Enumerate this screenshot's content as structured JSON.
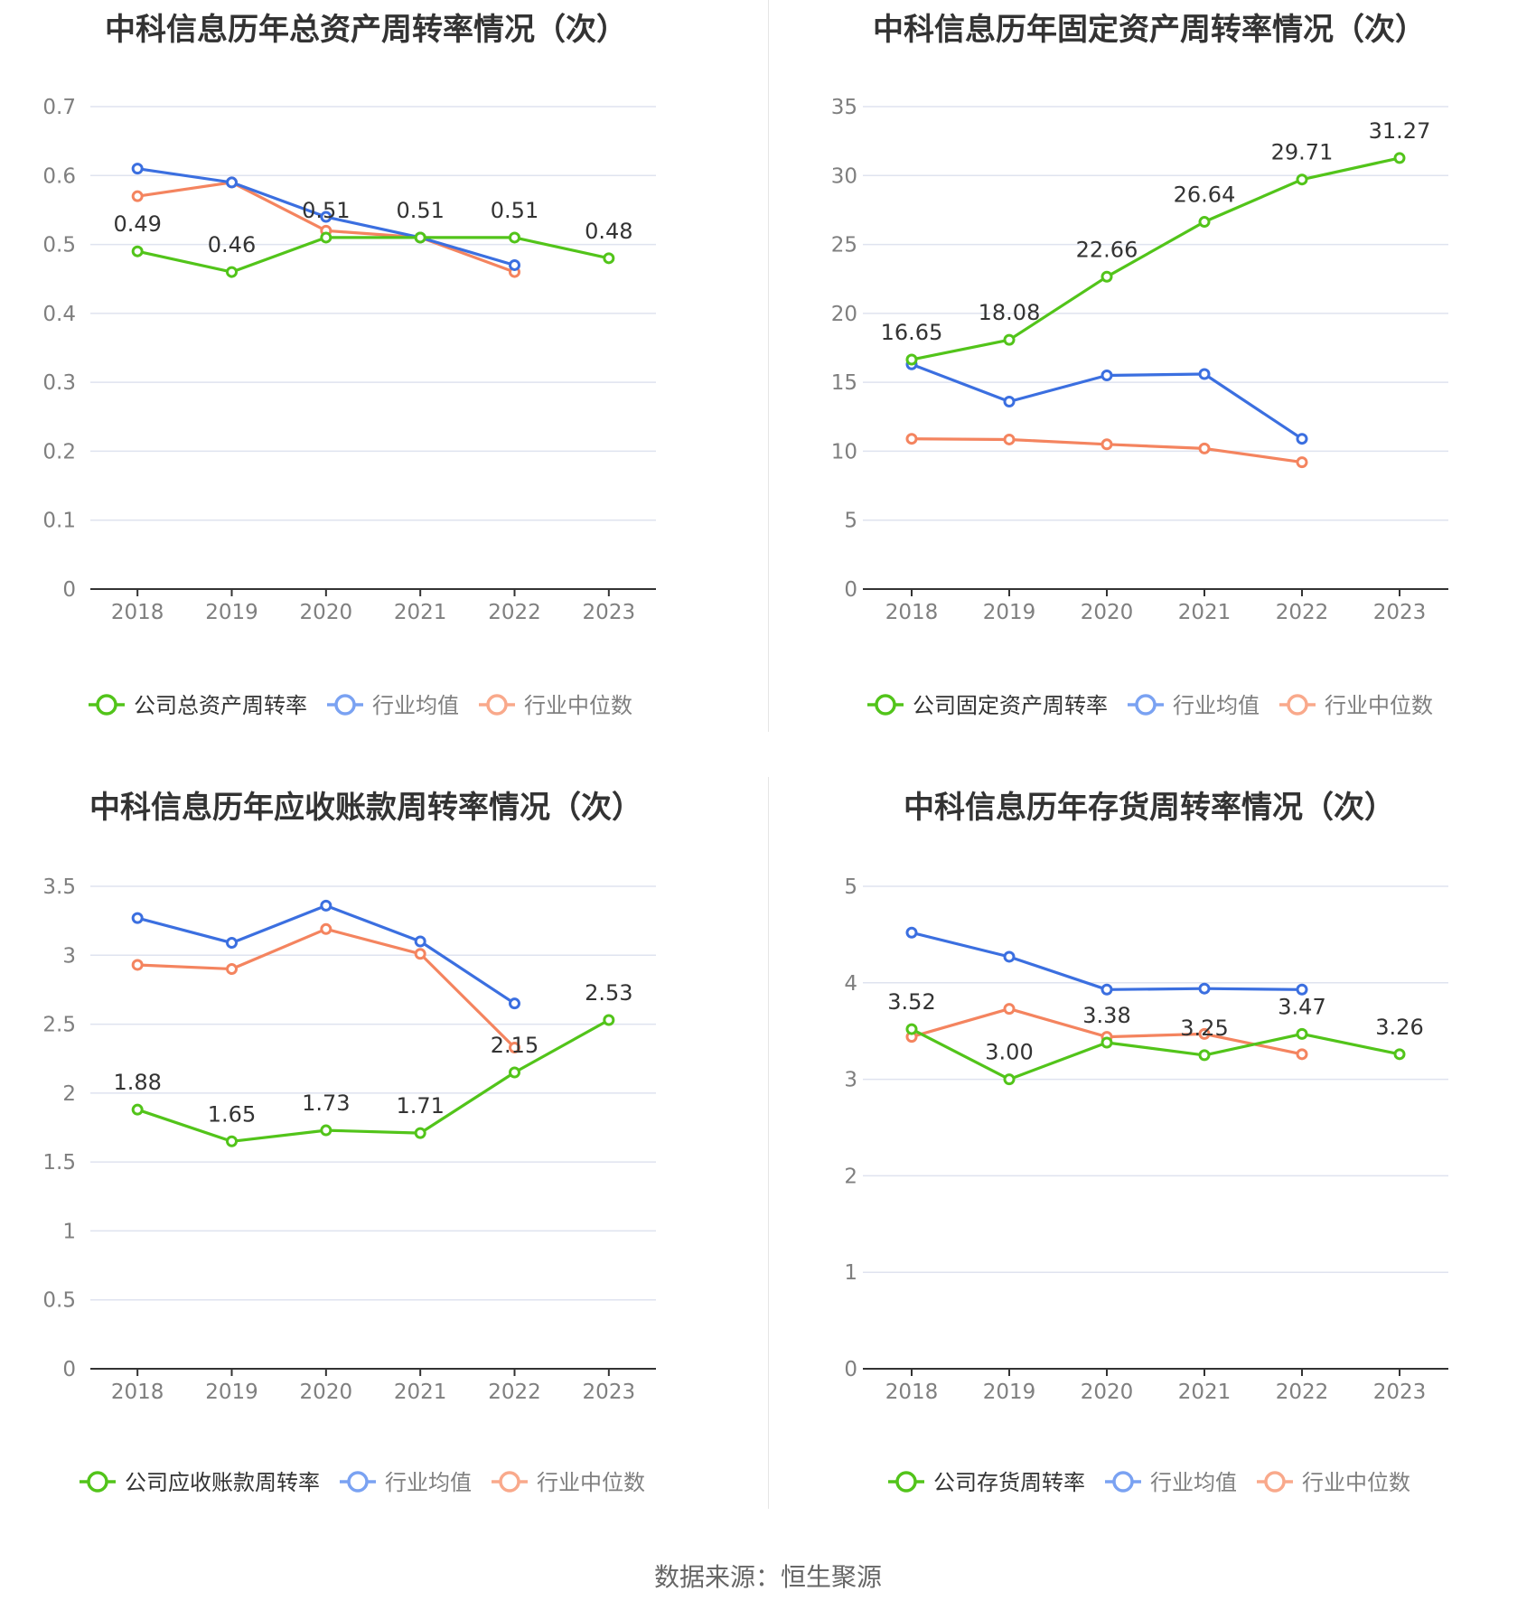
{
  "colors": {
    "company": "#52c41a",
    "average": "#3b6fe0",
    "median": "#f4845f",
    "average_legend": "#7aa2f2",
    "median_legend": "#f9a98b",
    "grid": "#dfe3ef",
    "axis": "#333333",
    "tick_text": "#7f7f7f",
    "title_text": "#333333",
    "label_text": "#333333"
  },
  "source_text": "数据来源：恒生聚源",
  "chart_data": [
    {
      "type": "line",
      "title": "中科信息历年总资产周转率情况（次）",
      "categories": [
        "2018",
        "2019",
        "2020",
        "2021",
        "2022",
        "2023"
      ],
      "ylim": [
        0,
        0.7
      ],
      "yticks": [
        "0",
        "0.1",
        "0.2",
        "0.3",
        "0.4",
        "0.5",
        "0.6",
        "0.7"
      ],
      "series": [
        {
          "name": "公司总资产周转率",
          "role": "company",
          "values": [
            0.49,
            0.46,
            0.51,
            0.51,
            0.51,
            0.48
          ],
          "labels": [
            "0.49",
            "0.46",
            "0.51",
            "0.51",
            "0.51",
            "0.48"
          ]
        },
        {
          "name": "行业均值",
          "role": "average",
          "values": [
            0.61,
            0.59,
            0.54,
            0.51,
            0.47,
            null
          ]
        },
        {
          "name": "行业中位数",
          "role": "median",
          "values": [
            0.57,
            0.59,
            0.52,
            0.51,
            0.46,
            null
          ]
        }
      ],
      "legend_position": "bottom",
      "grid": true
    },
    {
      "type": "line",
      "title": "中科信息历年固定资产周转率情况（次）",
      "categories": [
        "2018",
        "2019",
        "2020",
        "2021",
        "2022",
        "2023"
      ],
      "ylim": [
        0,
        35
      ],
      "yticks": [
        "0",
        "5",
        "10",
        "15",
        "20",
        "25",
        "30",
        "35"
      ],
      "series": [
        {
          "name": "公司固定资产周转率",
          "role": "company",
          "values": [
            16.65,
            18.08,
            22.66,
            26.64,
            29.71,
            31.27
          ],
          "labels": [
            "16.65",
            "18.08",
            "22.66",
            "26.64",
            "29.71",
            "31.27"
          ]
        },
        {
          "name": "行业均值",
          "role": "average",
          "values": [
            16.3,
            13.6,
            15.5,
            15.6,
            10.9,
            null
          ]
        },
        {
          "name": "行业中位数",
          "role": "median",
          "values": [
            10.9,
            10.85,
            10.5,
            10.2,
            9.2,
            null
          ]
        }
      ],
      "legend_position": "bottom",
      "grid": true
    },
    {
      "type": "line",
      "title": "中科信息历年应收账款周转率情况（次）",
      "categories": [
        "2018",
        "2019",
        "2020",
        "2021",
        "2022",
        "2023"
      ],
      "ylim": [
        0,
        3.5
      ],
      "yticks": [
        "0",
        "0.5",
        "1",
        "1.5",
        "2",
        "2.5",
        "3",
        "3.5"
      ],
      "series": [
        {
          "name": "公司应收账款周转率",
          "role": "company",
          "values": [
            1.88,
            1.65,
            1.73,
            1.71,
            2.15,
            2.53
          ],
          "labels": [
            "1.88",
            "1.65",
            "1.73",
            "1.71",
            "2.15",
            "2.53"
          ]
        },
        {
          "name": "行业均值",
          "role": "average",
          "values": [
            3.27,
            3.09,
            3.36,
            3.1,
            2.65,
            null
          ]
        },
        {
          "name": "行业中位数",
          "role": "median",
          "values": [
            2.93,
            2.9,
            3.19,
            3.01,
            2.33,
            null
          ]
        }
      ],
      "legend_position": "bottom",
      "grid": true
    },
    {
      "type": "line",
      "title": "中科信息历年存货周转率情况（次）",
      "categories": [
        "2018",
        "2019",
        "2020",
        "2021",
        "2022",
        "2023"
      ],
      "ylim": [
        0,
        5
      ],
      "yticks": [
        "0",
        "1",
        "2",
        "3",
        "4",
        "5"
      ],
      "series": [
        {
          "name": "公司存货周转率",
          "role": "company",
          "values": [
            3.52,
            3.0,
            3.38,
            3.25,
            3.47,
            3.26
          ],
          "labels": [
            "3.52",
            "3.00",
            "3.38",
            "3.25",
            "3.47",
            "3.26"
          ]
        },
        {
          "name": "行业均值",
          "role": "average",
          "values": [
            4.52,
            4.27,
            3.93,
            3.94,
            3.93,
            null
          ]
        },
        {
          "name": "行业中位数",
          "role": "median",
          "values": [
            3.44,
            3.73,
            3.44,
            3.47,
            3.26,
            null
          ]
        }
      ],
      "legend_position": "bottom",
      "grid": true
    }
  ]
}
